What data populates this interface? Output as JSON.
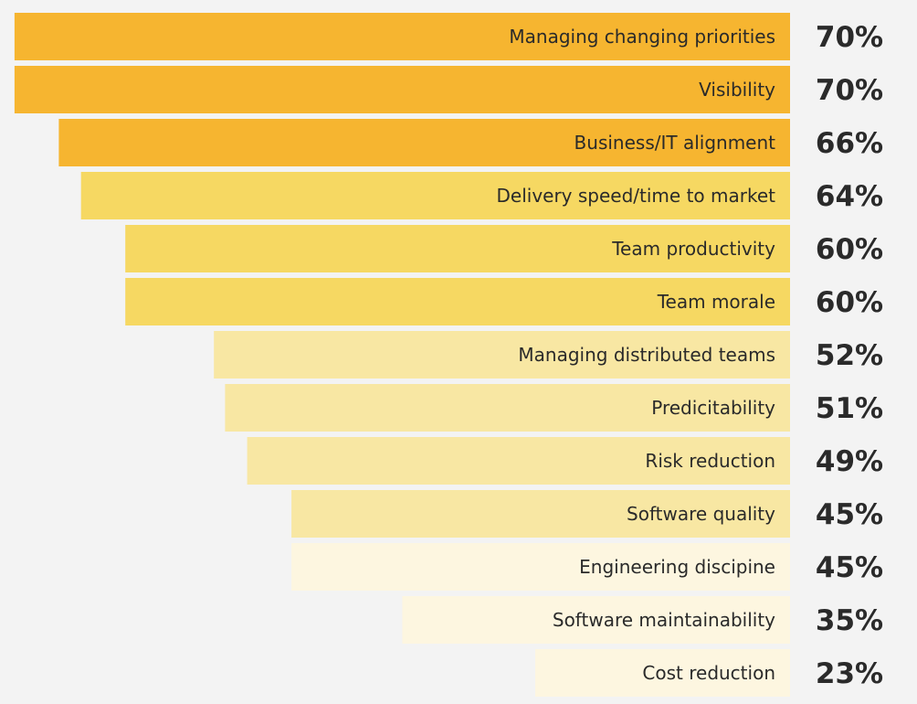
{
  "chart_data": {
    "type": "bar",
    "orientation": "horizontal",
    "categories": [
      "Managing changing priorities",
      "Visibility",
      "Business/IT alignment",
      "Delivery speed/time to market",
      "Team productivity",
      "Team morale",
      "Managing distributed teams",
      "Predicitability",
      "Risk reduction",
      "Software quality",
      "Engineering discipine",
      "Software maintainability",
      "Cost reduction"
    ],
    "values": [
      70,
      70,
      66,
      64,
      60,
      60,
      52,
      51,
      49,
      45,
      45,
      35,
      23
    ],
    "value_labels": [
      "70%",
      "70%",
      "66%",
      "64%",
      "60%",
      "60%",
      "52%",
      "51%",
      "49%",
      "45%",
      "45%",
      "35%",
      "23%"
    ],
    "bar_colors": [
      "#f6b530",
      "#f6b530",
      "#f6b530",
      "#f6d862",
      "#f6d862",
      "#f6d862",
      "#f8e7a3",
      "#f8e7a3",
      "#f8e7a3",
      "#f8e7a3",
      "#fdf6e0",
      "#fdf6e0",
      "#fdf6e0"
    ],
    "title": "",
    "xlabel": "",
    "ylabel": "",
    "grid": false,
    "legend": "none"
  }
}
